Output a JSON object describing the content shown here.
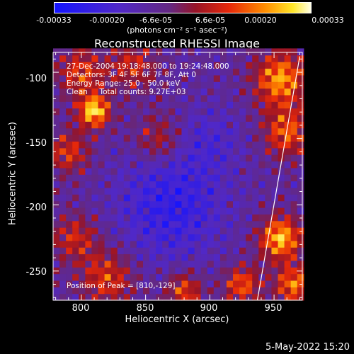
{
  "chart_data": {
    "type": "heatmap",
    "title": "Reconstructed RHESSI Image",
    "xlabel": "Heliocentric X (arcsec)",
    "ylabel": "Heliocentric Y (arcsec)",
    "xlim": [
      778,
      972
    ],
    "ylim": [
      -272,
      -85
    ],
    "x_ticks": [
      800,
      850,
      900,
      950
    ],
    "y_ticks": [
      -100,
      -150,
      -200,
      -250
    ],
    "colorbar": {
      "ticks": [
        "-0.00033",
        "-0.00020",
        "-6.6e-05",
        "6.6e-05",
        "0.00020",
        "0.00033"
      ],
      "units": "(photons cm⁻² s⁻¹ asec⁻²)",
      "range": [
        -0.00033,
        0.00033
      ]
    },
    "annotations": {
      "time": "27-Dec-2004 19:18:48.000 to 19:24:48.000",
      "detectors": "Detectors: 3F 4F 5F 6F 7F 8F, Att 0",
      "energy": "Energy Range: 25.0 - 50.0 keV",
      "clean": "Clean     Total counts: 9.27E+03",
      "peak": "Position of Peak = [810,-129]"
    },
    "peak_position": [
      810,
      -129
    ],
    "limb_line": [
      [
        937,
        -272
      ],
      [
        970,
        -88
      ]
    ]
  },
  "footer": {
    "date": "5-May-2022 15:20"
  },
  "colors": {
    "background": "#000000",
    "text": "#ffffff"
  }
}
